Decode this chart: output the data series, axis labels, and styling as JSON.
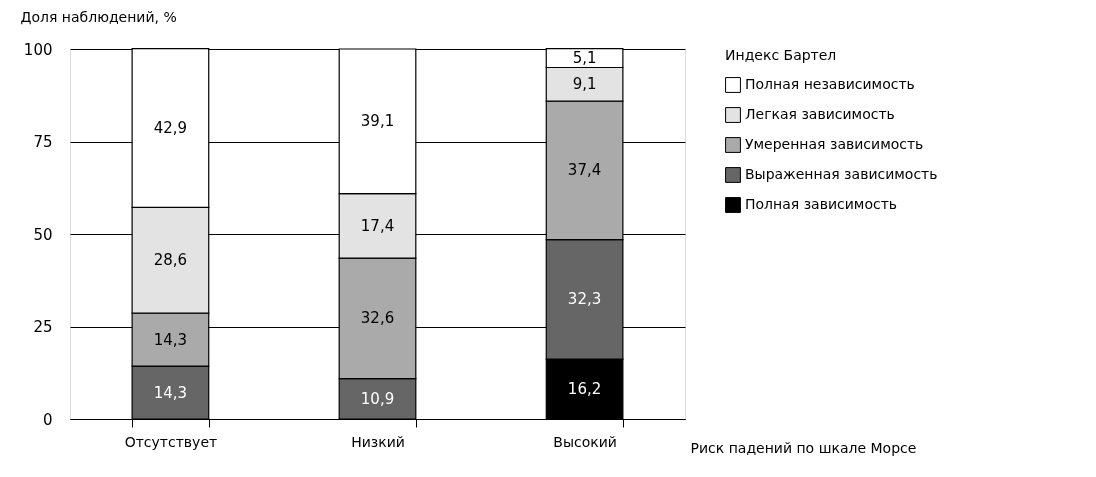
{
  "chart_data": {
    "type": "bar",
    "stacked": true,
    "xlabel": "Риск падений по шкале Морсе",
    "ylabel": "Доля наблюдений, %",
    "legend_title": "Индекс Бартел",
    "categories": [
      "Отсутствует",
      "Низкий",
      "Высокий"
    ],
    "series": [
      {
        "name": "Полная зависимость",
        "color": "#000000",
        "values": [
          null,
          null,
          16.2
        ],
        "value_labels": [
          null,
          null,
          "16,2"
        ]
      },
      {
        "name": "Выраженная зависимость",
        "color": "#666666",
        "values": [
          14.3,
          10.9,
          32.3
        ],
        "value_labels": [
          "14,3",
          "10,9",
          "32,3"
        ]
      },
      {
        "name": "Умеренная зависимость",
        "color": "#aaaaaa",
        "values": [
          14.3,
          32.6,
          37.4
        ],
        "value_labels": [
          "14,3",
          "32,6",
          "37,4"
        ]
      },
      {
        "name": "Легкая зависимость",
        "color": "#e3e3e3",
        "values": [
          28.6,
          17.4,
          9.1
        ],
        "value_labels": [
          "28,6",
          "17,4",
          "9,1"
        ]
      },
      {
        "name": "Полная независимость",
        "color": "#ffffff",
        "values": [
          42.9,
          39.1,
          5.1
        ],
        "value_labels": [
          "42,9",
          "39,1",
          "5,1"
        ]
      }
    ],
    "ylim": [
      0,
      100
    ],
    "yticks": [
      0,
      25,
      50,
      75,
      100
    ],
    "grid": "y",
    "legend": "right"
  }
}
